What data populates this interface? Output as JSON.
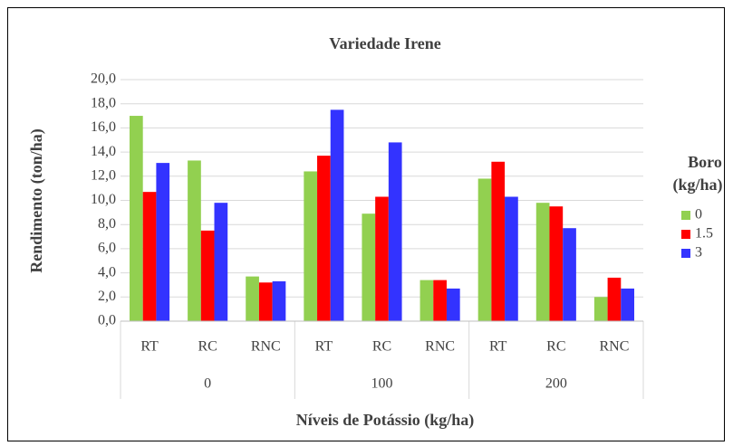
{
  "chart_data": {
    "type": "bar",
    "title": "Variedade Irene",
    "y_label": "Rendimento (ton/ha)",
    "x_label": "Níveis de Potássio (kg/ha)",
    "legend_title": [
      "Boro",
      "(kg/ha)"
    ],
    "legend_position": "right",
    "categories": [
      "RT",
      "RC",
      "RNC",
      "RT",
      "RC",
      "RNC",
      "RT",
      "RC",
      "RNC"
    ],
    "groups": [
      "0",
      "100",
      "200"
    ],
    "series": [
      {
        "name": "0",
        "color": "#92d050",
        "values": [
          17.0,
          13.3,
          3.7,
          12.4,
          8.9,
          3.4,
          11.8,
          9.8,
          2.0
        ]
      },
      {
        "name": "1.5",
        "color": "#ff0000",
        "values": [
          10.7,
          7.5,
          3.2,
          13.7,
          10.3,
          3.4,
          13.2,
          9.5,
          3.6
        ]
      },
      {
        "name": "3",
        "color": "#3333ff",
        "values": [
          13.1,
          9.8,
          3.3,
          17.5,
          14.8,
          2.7,
          10.3,
          7.7,
          2.7
        ]
      }
    ],
    "ylim": [
      0,
      20
    ],
    "yticks": [
      {
        "value": 0,
        "label": "0,0"
      },
      {
        "value": 2,
        "label": "2,0"
      },
      {
        "value": 4,
        "label": "4,0"
      },
      {
        "value": 6,
        "label": "6,0"
      },
      {
        "value": 8,
        "label": "8,0"
      },
      {
        "value": 10,
        "label": "10,0"
      },
      {
        "value": 12,
        "label": "12,0"
      },
      {
        "value": 14,
        "label": "14,0"
      },
      {
        "value": 16,
        "label": "16,0"
      },
      {
        "value": 18,
        "label": "18,0"
      },
      {
        "value": 20,
        "label": "20,0"
      }
    ],
    "grid": true
  }
}
